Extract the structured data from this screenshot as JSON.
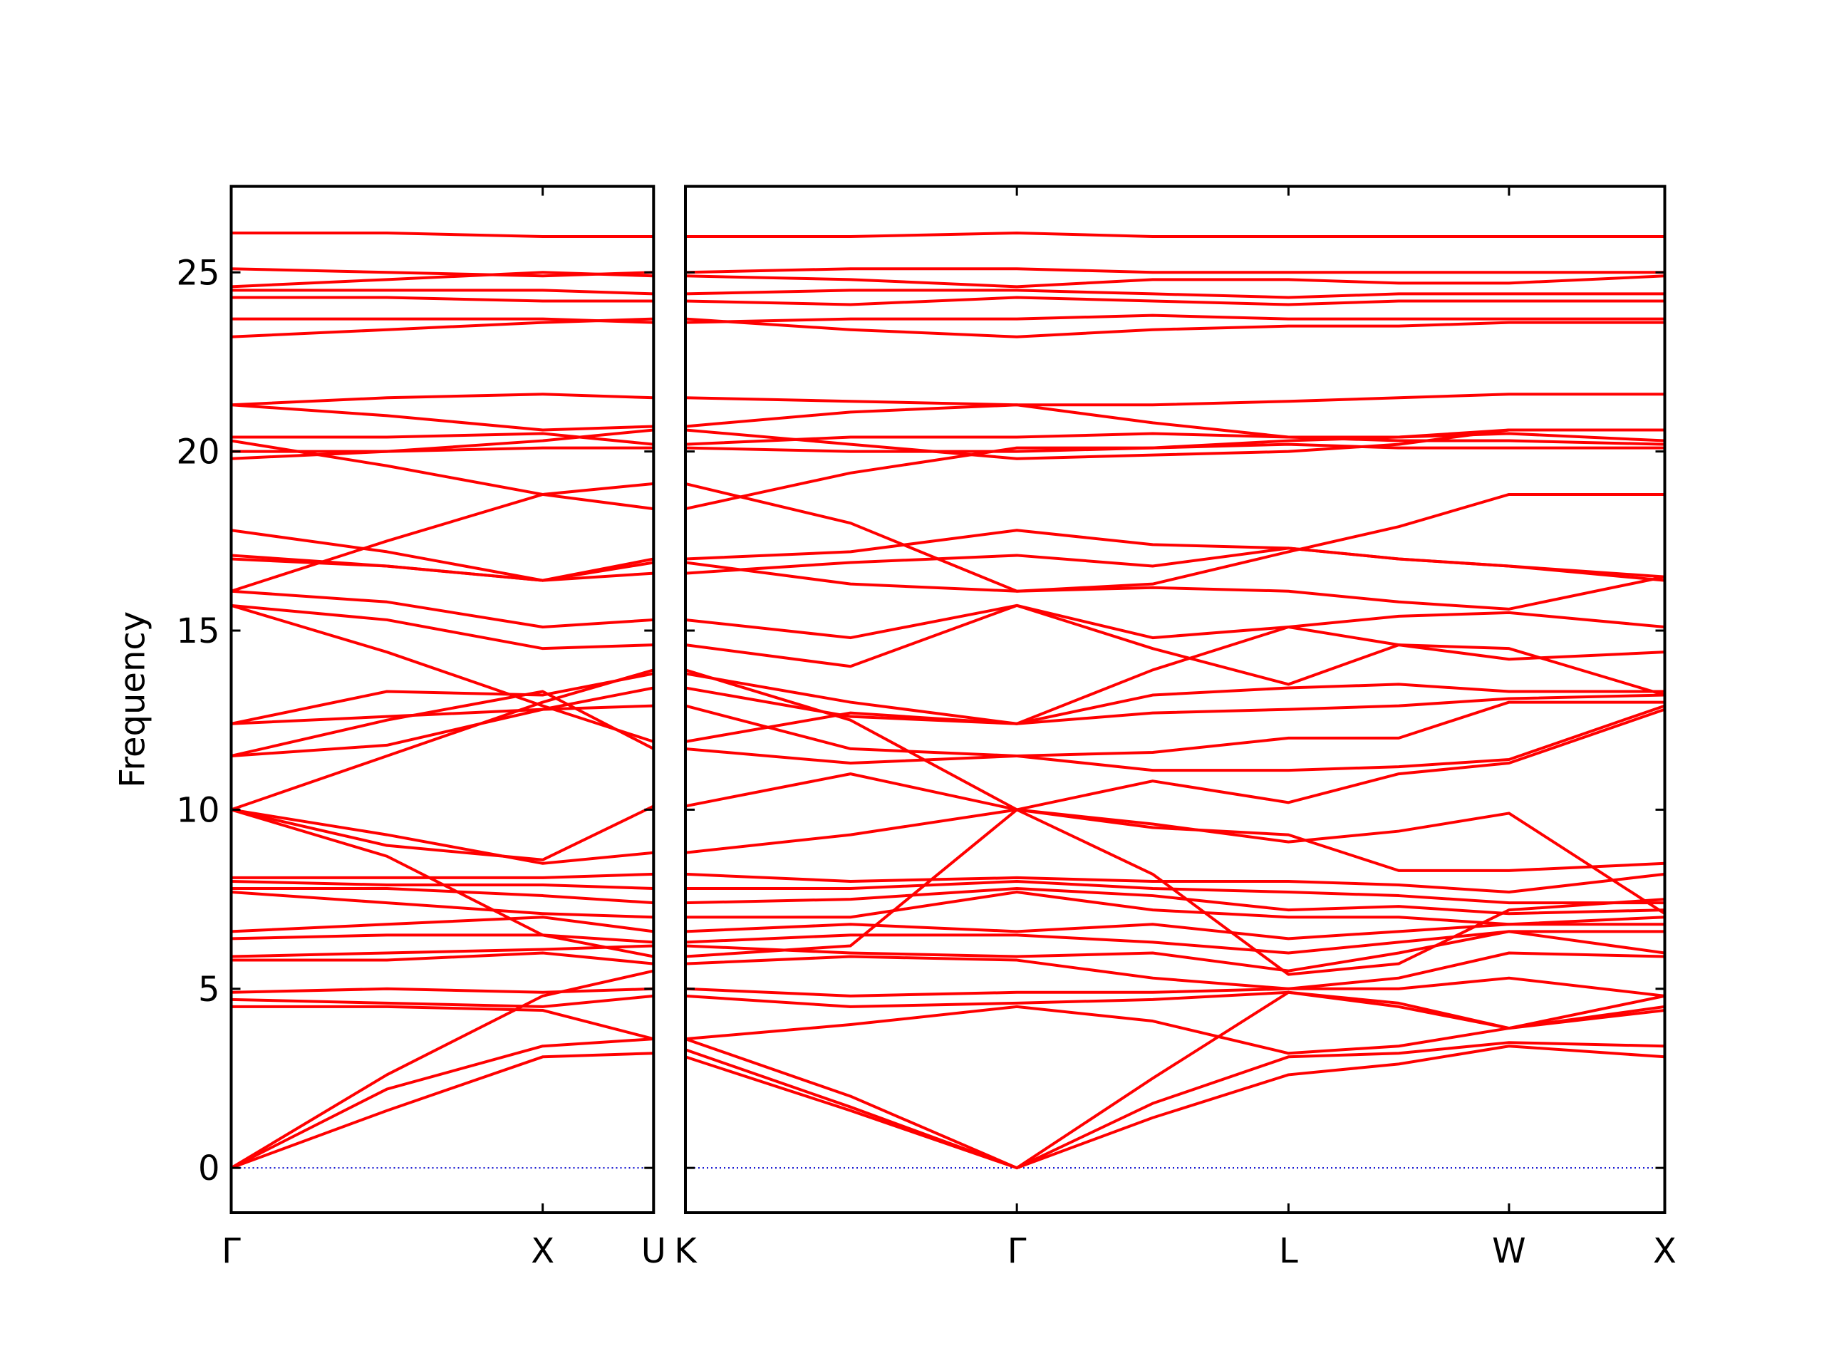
{
  "chart_data": [
    {
      "type": "line",
      "ylabel": "Frequency",
      "color": "#ff0000",
      "zero_line": 0,
      "zero_line_color": "#0000cd",
      "x": [
        0,
        0.5,
        1,
        1.356
      ],
      "xlim": [
        0,
        1.356
      ],
      "xticks": [
        {
          "value": 0,
          "label": "Γ"
        },
        {
          "value": 1,
          "label": "X"
        },
        {
          "value": 1.356,
          "label": "U"
        }
      ],
      "ylim": [
        -1.25,
        27.4
      ],
      "yticks": [
        0,
        5,
        10,
        15,
        20,
        25
      ],
      "ytick_labels": true,
      "series": [
        {
          "values": [
            0,
            1.6,
            3.1,
            3.2
          ]
        },
        {
          "values": [
            0,
            2.2,
            3.4,
            3.6
          ]
        },
        {
          "values": [
            0,
            2.6,
            4.8,
            5.5
          ]
        },
        {
          "values": [
            4.5,
            4.5,
            4.4,
            3.6
          ]
        },
        {
          "values": [
            4.7,
            4.6,
            4.5,
            4.8
          ]
        },
        {
          "values": [
            4.9,
            5.0,
            4.9,
            5.0
          ]
        },
        {
          "values": [
            5.8,
            5.8,
            6.0,
            5.7
          ]
        },
        {
          "values": [
            5.9,
            6.0,
            6.1,
            6.2
          ]
        },
        {
          "values": [
            6.4,
            6.5,
            6.5,
            6.3
          ]
        },
        {
          "values": [
            6.6,
            6.8,
            7.0,
            6.6
          ]
        },
        {
          "values": [
            7.7,
            7.4,
            7.1,
            7.0
          ]
        },
        {
          "values": [
            7.8,
            7.8,
            7.6,
            7.4
          ]
        },
        {
          "values": [
            8.0,
            7.9,
            7.9,
            7.8
          ]
        },
        {
          "values": [
            8.1,
            8.1,
            8.1,
            8.2
          ]
        },
        {
          "values": [
            10,
            9.0,
            8.6,
            10.1
          ]
        },
        {
          "values": [
            10,
            9.3,
            8.5,
            8.8
          ]
        },
        {
          "values": [
            10,
            8.7,
            6.5,
            5.9
          ]
        },
        {
          "values": [
            10,
            11.5,
            13.0,
            13.9
          ]
        },
        {
          "values": [
            11.5,
            11.8,
            12.8,
            12.9
          ]
        },
        {
          "values": [
            11.5,
            12.5,
            13.3,
            11.7
          ]
        },
        {
          "values": [
            12.4,
            12.6,
            12.8,
            13.4
          ]
        },
        {
          "values": [
            12.4,
            13.3,
            13.2,
            13.8
          ]
        },
        {
          "values": [
            15.7,
            14.4,
            12.9,
            11.9
          ]
        },
        {
          "values": [
            15.7,
            15.3,
            14.5,
            14.6
          ]
        },
        {
          "values": [
            16.1,
            15.8,
            15.1,
            15.3
          ]
        },
        {
          "values": [
            16.1,
            17.5,
            18.8,
            19.1
          ]
        },
        {
          "values": [
            17.0,
            16.8,
            16.4,
            16.9
          ]
        },
        {
          "values": [
            17.1,
            16.8,
            16.4,
            16.6
          ]
        },
        {
          "values": [
            17.8,
            17.2,
            16.4,
            17.0
          ]
        },
        {
          "values": [
            19.8,
            20.0,
            20.3,
            20.6
          ]
        },
        {
          "values": [
            20.0,
            20.0,
            20.1,
            20.1
          ]
        },
        {
          "values": [
            20.3,
            19.6,
            18.8,
            18.4
          ]
        },
        {
          "values": [
            20.4,
            20.4,
            20.5,
            20.2
          ]
        },
        {
          "values": [
            21.3,
            21.5,
            21.6,
            21.5
          ]
        },
        {
          "values": [
            21.3,
            21.0,
            20.6,
            20.7
          ]
        },
        {
          "values": [
            23.2,
            23.4,
            23.6,
            23.7
          ]
        },
        {
          "values": [
            23.7,
            23.7,
            23.7,
            23.6
          ]
        },
        {
          "values": [
            24.3,
            24.3,
            24.2,
            24.2
          ]
        },
        {
          "values": [
            24.5,
            24.5,
            24.5,
            24.4
          ]
        },
        {
          "values": [
            24.6,
            24.8,
            25.0,
            24.9
          ]
        },
        {
          "values": [
            25.1,
            25.0,
            24.9,
            25.0
          ]
        },
        {
          "values": [
            26.1,
            26.1,
            26.0,
            26.0
          ]
        }
      ]
    },
    {
      "type": "line",
      "color": "#ff0000",
      "zero_line": 0,
      "zero_line_color": "#0000cd",
      "x": [
        0,
        0.53,
        1.064,
        1.5,
        1.936,
        2.29,
        2.644,
        3.144
      ],
      "xlim": [
        0,
        3.144
      ],
      "xticks": [
        {
          "value": 0,
          "label": "K"
        },
        {
          "value": 1.064,
          "label": "Γ"
        },
        {
          "value": 1.936,
          "label": "L"
        },
        {
          "value": 2.644,
          "label": "W"
        },
        {
          "value": 3.144,
          "label": "X"
        }
      ],
      "ylim": [
        -1.25,
        27.4
      ],
      "yticks": [
        0,
        5,
        10,
        15,
        20,
        25
      ],
      "ytick_labels": false,
      "series": [
        {
          "values": [
            3.1,
            1.6,
            0,
            1.4,
            2.6,
            2.9,
            3.4,
            3.1
          ]
        },
        {
          "values": [
            3.3,
            1.7,
            0,
            1.8,
            3.1,
            3.2,
            3.5,
            3.4
          ]
        },
        {
          "values": [
            3.6,
            2.0,
            0,
            2.5,
            4.9,
            4.5,
            3.9,
            4.4
          ]
        },
        {
          "values": [
            3.6,
            4.0,
            4.5,
            4.1,
            3.2,
            3.4,
            3.9,
            4.5
          ]
        },
        {
          "values": [
            4.8,
            4.5,
            4.6,
            4.7,
            4.9,
            4.6,
            3.9,
            4.8
          ]
        },
        {
          "values": [
            5.0,
            4.8,
            4.9,
            4.9,
            5.0,
            5.0,
            5.3,
            4.8
          ]
        },
        {
          "values": [
            5.7,
            5.9,
            5.8,
            5.3,
            5.0,
            5.3,
            6.0,
            5.9
          ]
        },
        {
          "values": [
            6.2,
            6.0,
            5.9,
            6.0,
            5.5,
            6.0,
            6.6,
            6.0
          ]
        },
        {
          "values": [
            6.3,
            6.5,
            6.5,
            6.3,
            6.0,
            6.3,
            6.6,
            6.6
          ]
        },
        {
          "values": [
            6.6,
            6.8,
            6.6,
            6.8,
            6.4,
            6.6,
            6.8,
            6.8
          ]
        },
        {
          "values": [
            7.0,
            7.0,
            7.7,
            7.2,
            7.0,
            7.0,
            6.8,
            7.0
          ]
        },
        {
          "values": [
            7.4,
            7.5,
            7.8,
            7.6,
            7.2,
            7.3,
            7.1,
            7.2
          ]
        },
        {
          "values": [
            7.8,
            7.8,
            8.0,
            7.8,
            7.7,
            7.6,
            7.4,
            7.4
          ]
        },
        {
          "values": [
            8.2,
            8.0,
            8.1,
            8.0,
            8.0,
            7.9,
            7.7,
            8.2
          ]
        },
        {
          "values": [
            10.1,
            11.0,
            10.0,
            9.5,
            9.3,
            8.3,
            8.3,
            8.5
          ]
        },
        {
          "values": [
            8.8,
            9.3,
            10.0,
            9.6,
            9.1,
            9.4,
            9.9,
            7.1
          ]
        },
        {
          "values": [
            5.9,
            6.2,
            10.0,
            8.2,
            5.4,
            5.7,
            7.2,
            7.5
          ]
        },
        {
          "values": [
            13.9,
            12.5,
            10.0,
            10.8,
            10.2,
            11.0,
            11.3,
            12.8
          ]
        },
        {
          "values": [
            12.9,
            11.7,
            11.5,
            11.1,
            11.1,
            11.2,
            11.4,
            12.9
          ]
        },
        {
          "values": [
            11.7,
            11.3,
            11.5,
            11.6,
            12.0,
            12.0,
            13.0,
            13.0
          ]
        },
        {
          "values": [
            13.4,
            12.6,
            12.4,
            13.2,
            13.4,
            13.5,
            13.3,
            13.3
          ]
        },
        {
          "values": [
            13.8,
            13.0,
            12.4,
            12.7,
            12.8,
            12.9,
            13.1,
            13.2
          ]
        },
        {
          "values": [
            11.9,
            12.7,
            12.4,
            13.9,
            15.1,
            14.6,
            14.2,
            14.4
          ]
        },
        {
          "values": [
            14.6,
            14.0,
            15.7,
            14.8,
            15.1,
            15.4,
            15.5,
            15.1
          ]
        },
        {
          "values": [
            15.3,
            14.8,
            15.7,
            14.5,
            13.5,
            14.6,
            14.5,
            13.2
          ]
        },
        {
          "values": [
            19.1,
            18.0,
            16.1,
            16.3,
            17.2,
            17.9,
            18.8,
            18.8
          ]
        },
        {
          "values": [
            16.9,
            16.3,
            16.1,
            16.2,
            16.1,
            15.8,
            15.6,
            16.5
          ]
        },
        {
          "values": [
            16.6,
            16.9,
            17.1,
            16.8,
            17.3,
            17.0,
            16.8,
            16.4
          ]
        },
        {
          "values": [
            17.0,
            17.2,
            17.8,
            17.4,
            17.3,
            17.0,
            16.8,
            16.5
          ]
        },
        {
          "values": [
            20.6,
            20.2,
            19.8,
            19.9,
            20.0,
            20.2,
            20.6,
            20.6
          ]
        },
        {
          "values": [
            20.1,
            20.0,
            20.0,
            20.1,
            20.2,
            20.1,
            20.1,
            20.1
          ]
        },
        {
          "values": [
            18.4,
            19.4,
            20.1,
            20.1,
            20.3,
            20.4,
            20.5,
            20.3
          ]
        },
        {
          "values": [
            20.2,
            20.4,
            20.4,
            20.5,
            20.4,
            20.3,
            20.3,
            20.2
          ]
        },
        {
          "values": [
            21.5,
            21.4,
            21.3,
            21.3,
            21.4,
            21.5,
            21.6,
            21.6
          ]
        },
        {
          "values": [
            20.7,
            21.1,
            21.3,
            20.8,
            20.4,
            20.4,
            20.6,
            20.6
          ]
        },
        {
          "values": [
            23.7,
            23.4,
            23.2,
            23.4,
            23.5,
            23.5,
            23.6,
            23.6
          ]
        },
        {
          "values": [
            23.6,
            23.7,
            23.7,
            23.8,
            23.7,
            23.7,
            23.7,
            23.7
          ]
        },
        {
          "values": [
            24.2,
            24.1,
            24.3,
            24.2,
            24.1,
            24.2,
            24.2,
            24.2
          ]
        },
        {
          "values": [
            24.4,
            24.5,
            24.5,
            24.4,
            24.3,
            24.4,
            24.4,
            24.4
          ]
        },
        {
          "values": [
            24.9,
            24.8,
            24.6,
            24.8,
            24.8,
            24.7,
            24.7,
            24.9
          ]
        },
        {
          "values": [
            25.0,
            25.1,
            25.1,
            25.0,
            25.0,
            25.0,
            25.0,
            25.0
          ]
        },
        {
          "values": [
            26.0,
            26.0,
            26.1,
            26.0,
            26.0,
            26.0,
            26.0,
            26.0
          ]
        }
      ]
    }
  ]
}
